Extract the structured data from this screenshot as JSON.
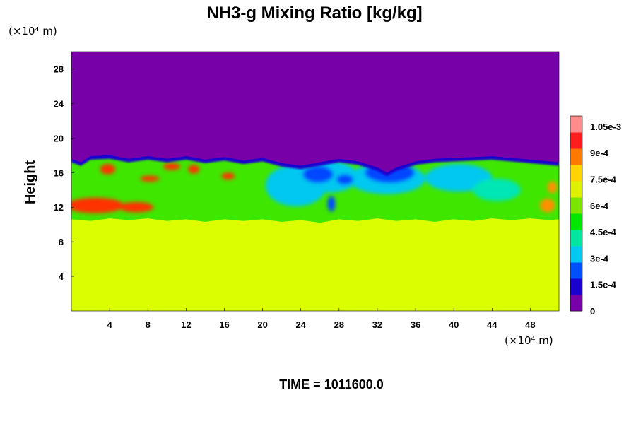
{
  "chart_data": {
    "type": "heatmap",
    "title": "NH3-g Mixing Ratio [kg/kg]",
    "ylabel": "Height",
    "y_unit": "(×10⁴ m)",
    "x_unit": "(×10⁴ m)",
    "xlim": [
      0,
      51
    ],
    "ylim": [
      0,
      30
    ],
    "x_ticks": [
      "4",
      "8",
      "12",
      "16",
      "20",
      "24",
      "28",
      "32",
      "36",
      "40",
      "44",
      "48"
    ],
    "y_ticks": [
      "4",
      "8",
      "12",
      "16",
      "20",
      "24",
      "28"
    ],
    "colorbar": {
      "range": [
        0,
        0.00111
      ],
      "labels": [
        "0",
        "1.5e-4",
        "3e-4",
        "4.5e-4",
        "6e-4",
        "7.5e-4",
        "9e-4",
        "1.05e-3"
      ],
      "colors": [
        "#7800a8",
        "#1c00cc",
        "#0050ff",
        "#00c8f0",
        "#00e6a0",
        "#00e600",
        "#7ae600",
        "#dcf000",
        "#ffd200",
        "#ff7800",
        "#ff1e1e",
        "#ff8c8c"
      ]
    },
    "regions": {
      "lower_layer": {
        "value": 0.00077,
        "color": "#dcff00",
        "y_top": 10.5
      },
      "upper_layer": {
        "value": 0.0,
        "color": "#7800a8",
        "y_bottom": 17.5
      },
      "mixing_layer_base": {
        "value": 0.00065,
        "color": "#3fe600"
      },
      "features": [
        {
          "kind": "high",
          "value": 0.00098,
          "color": "#ff3000",
          "x": 2.5,
          "y": 12.2,
          "rx": 3.0,
          "ry": 0.9
        },
        {
          "kind": "high",
          "value": 0.00098,
          "color": "#ff3000",
          "x": 6.8,
          "y": 12.0,
          "rx": 1.8,
          "ry": 0.6
        },
        {
          "kind": "high",
          "value": 0.00098,
          "color": "#ff3000",
          "x": 3.8,
          "y": 16.4,
          "rx": 0.8,
          "ry": 0.6
        },
        {
          "kind": "high",
          "value": 0.00098,
          "color": "#ff3000",
          "x": 8.2,
          "y": 15.3,
          "rx": 1.0,
          "ry": 0.35
        },
        {
          "kind": "high",
          "value": 0.00098,
          "color": "#ff3000",
          "x": 10.5,
          "y": 16.7,
          "rx": 0.9,
          "ry": 0.4
        },
        {
          "kind": "high",
          "value": 0.00098,
          "color": "#ff3000",
          "x": 12.8,
          "y": 16.4,
          "rx": 0.6,
          "ry": 0.5
        },
        {
          "kind": "high",
          "value": 0.00098,
          "color": "#ff3000",
          "x": 16.4,
          "y": 15.6,
          "rx": 0.7,
          "ry": 0.4
        },
        {
          "kind": "high",
          "value": 0.0009,
          "color": "#ff9000",
          "x": 49.8,
          "y": 12.2,
          "rx": 0.8,
          "ry": 0.8
        },
        {
          "kind": "high",
          "value": 0.0009,
          "color": "#ff9000",
          "x": 50.3,
          "y": 14.3,
          "rx": 0.5,
          "ry": 0.7
        },
        {
          "kind": "low",
          "value": 0.00025,
          "color": "#00c8f0",
          "x": 23.5,
          "y": 14.5,
          "rx": 3.2,
          "ry": 2.4
        },
        {
          "kind": "low",
          "value": 0.00025,
          "color": "#00c8f0",
          "x": 27.0,
          "y": 15.5,
          "rx": 3.0,
          "ry": 1.8
        },
        {
          "kind": "low",
          "value": 0.00025,
          "color": "#00c8f0",
          "x": 33.0,
          "y": 15.3,
          "rx": 4.0,
          "ry": 1.8
        },
        {
          "kind": "low",
          "value": 0.00025,
          "color": "#00c8f0",
          "x": 40.5,
          "y": 15.4,
          "rx": 3.5,
          "ry": 1.6
        },
        {
          "kind": "low",
          "value": 0.0001,
          "color": "#0046ff",
          "x": 25.8,
          "y": 15.8,
          "rx": 1.6,
          "ry": 1.0
        },
        {
          "kind": "low",
          "value": 0.0001,
          "color": "#0046ff",
          "x": 33.3,
          "y": 16.0,
          "rx": 2.6,
          "ry": 1.2
        },
        {
          "kind": "low",
          "value": 0.0001,
          "color": "#0046ff",
          "x": 28.6,
          "y": 15.2,
          "rx": 0.9,
          "ry": 0.6
        },
        {
          "kind": "low",
          "value": 0.0001,
          "color": "#0046ff",
          "x": 27.2,
          "y": 12.4,
          "rx": 0.4,
          "ry": 0.9
        },
        {
          "kind": "low",
          "value": 0.0004,
          "color": "#00e6b4",
          "x": 44.5,
          "y": 14.0,
          "rx": 2.5,
          "ry": 1.3
        }
      ]
    }
  },
  "footer": {
    "time_label": "TIME = 1011600.0"
  }
}
